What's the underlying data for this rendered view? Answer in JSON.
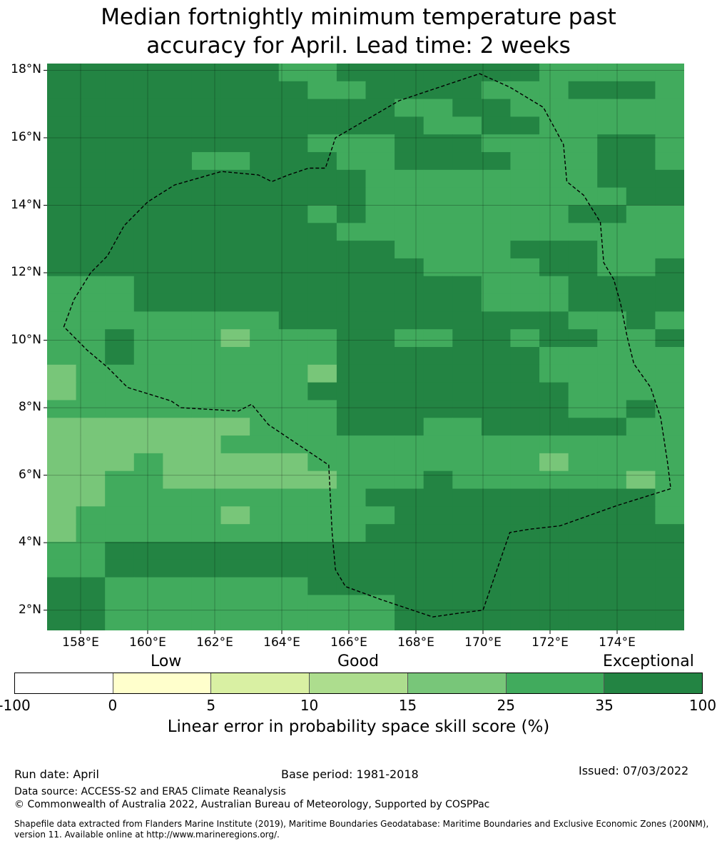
{
  "title": {
    "line1": "Median fortnightly minimum temperature past",
    "line2": "accuracy for April. Lead time: 2 weeks"
  },
  "map": {
    "lon_range": [
      157,
      176
    ],
    "lat_range": [
      1.4,
      18.2
    ],
    "lat_ticks": [
      {
        "value": 18,
        "label": "18°N"
      },
      {
        "value": 16,
        "label": "16°N"
      },
      {
        "value": 14,
        "label": "14°N"
      },
      {
        "value": 12,
        "label": "12°N"
      },
      {
        "value": 10,
        "label": "10°N"
      },
      {
        "value": 8,
        "label": "8°N"
      },
      {
        "value": 6,
        "label": "6°N"
      },
      {
        "value": 4,
        "label": "4°N"
      },
      {
        "value": 2,
        "label": "2°N"
      }
    ],
    "lon_ticks": [
      {
        "value": 158,
        "label": "158°E"
      },
      {
        "value": 160,
        "label": "160°E"
      },
      {
        "value": 162,
        "label": "162°E"
      },
      {
        "value": 164,
        "label": "164°E"
      },
      {
        "value": 166,
        "label": "166°E"
      },
      {
        "value": 168,
        "label": "168°E"
      },
      {
        "value": 170,
        "label": "170°E"
      },
      {
        "value": 172,
        "label": "172°E"
      },
      {
        "value": 174,
        "label": "174°E"
      }
    ],
    "cell_size_deg": 0.833,
    "grid_note": "skill category per cell: 1=15-25, 2=25-35, 3=35-100",
    "grid": [
      "3333333322333333322222",
      "3333333332233332223332",
      "3333333333332233222222",
      "3333333333333223322222",
      "3333333332223332222332",
      "3333322333223333222332",
      "3333333333322222222333",
      "3333333333322222222233",
      "3333333332322222223322",
      "3333333333222222222222",
      "3333333333332222333222",
      "3333333333333222233223",
      "2223333333333332223333",
      "2223333333333332223333",
      "2222222233333333332232",
      "2232221222332233233223",
      "2232222222333333322222",
      "1222222221333333322222",
      "1222222223333333332222",
      "2222222222333333332232",
      "1111111222333223333322",
      "1111112222222222222222",
      "1112111112222222212222",
      "1122111111222322222212",
      "1122222222233333333332",
      "1222221222223333333332",
      "1222222222233333333333",
      "2233333333333333333333",
      "2233333333333333333333",
      "3322222223333333333333",
      "3322222222223333333333",
      "3322222222223333333333"
    ],
    "eez_boundary": [
      [
        157.5,
        10.4
      ],
      [
        157.8,
        11.2
      ],
      [
        158.3,
        12.0
      ],
      [
        158.8,
        12.5
      ],
      [
        159.3,
        13.4
      ],
      [
        160.0,
        14.1
      ],
      [
        160.8,
        14.6
      ],
      [
        162.2,
        15.0
      ],
      [
        163.3,
        14.9
      ],
      [
        163.7,
        14.7
      ],
      [
        164.2,
        14.9
      ],
      [
        164.8,
        15.1
      ],
      [
        165.3,
        15.1
      ],
      [
        165.6,
        16.0
      ],
      [
        167.5,
        17.1
      ],
      [
        169.9,
        17.9
      ],
      [
        170.8,
        17.5
      ],
      [
        171.8,
        16.9
      ],
      [
        172.4,
        15.8
      ],
      [
        172.5,
        14.7
      ],
      [
        173.0,
        14.3
      ],
      [
        173.5,
        13.5
      ],
      [
        173.6,
        12.3
      ],
      [
        173.9,
        11.8
      ],
      [
        174.1,
        11.1
      ],
      [
        174.3,
        10.1
      ],
      [
        174.5,
        9.3
      ],
      [
        175.0,
        8.6
      ],
      [
        175.3,
        7.7
      ],
      [
        175.5,
        6.4
      ],
      [
        175.6,
        5.6
      ],
      [
        174.0,
        5.1
      ],
      [
        172.3,
        4.5
      ],
      [
        171.4,
        4.4
      ],
      [
        170.8,
        4.3
      ],
      [
        170.0,
        2.0
      ],
      [
        169.2,
        1.9
      ],
      [
        168.5,
        1.8
      ],
      [
        167.0,
        2.3
      ],
      [
        165.9,
        2.7
      ],
      [
        165.6,
        3.2
      ],
      [
        165.5,
        4.3
      ],
      [
        165.4,
        6.3
      ],
      [
        164.5,
        6.9
      ],
      [
        163.6,
        7.5
      ],
      [
        163.1,
        8.1
      ],
      [
        162.7,
        7.9
      ],
      [
        161.0,
        8.0
      ],
      [
        160.7,
        8.2
      ],
      [
        159.4,
        8.6
      ],
      [
        158.8,
        9.2
      ],
      [
        158.2,
        9.7
      ],
      [
        157.5,
        10.4
      ]
    ]
  },
  "legend": {
    "categories": {
      "low": "Low",
      "good": "Good",
      "exceptional": "Exceptional"
    },
    "colors": [
      "#ffffff",
      "#ffffcc",
      "#d9f0a3",
      "#addd8e",
      "#78c679",
      "#41ab5d",
      "#238443"
    ],
    "ticks": [
      "-100",
      "0",
      "5",
      "10",
      "15",
      "25",
      "35",
      "100"
    ],
    "title": "Linear error in probability space skill score (%)"
  },
  "footer": {
    "run_date": "Run date: April",
    "base_period": "Base period: 1981-2018",
    "issued": "Issued: 07/03/2022",
    "data_source": "Data source: ACCESS-S2 and ERA5 Climate Reanalysis",
    "copyright": "© Commonwealth of Australia 2022, Australian Bureau of Meteorology, Supported by COSPPac",
    "shapefile_line1": "Shapefile data extracted from Flanders Marine Institute (2019), Maritime Boundaries Geodatabase: Maritime Boundaries and Exclusive Economic Zones (200NM),",
    "shapefile_line2": "version 11. Available online at http://www.marineregions.org/."
  }
}
